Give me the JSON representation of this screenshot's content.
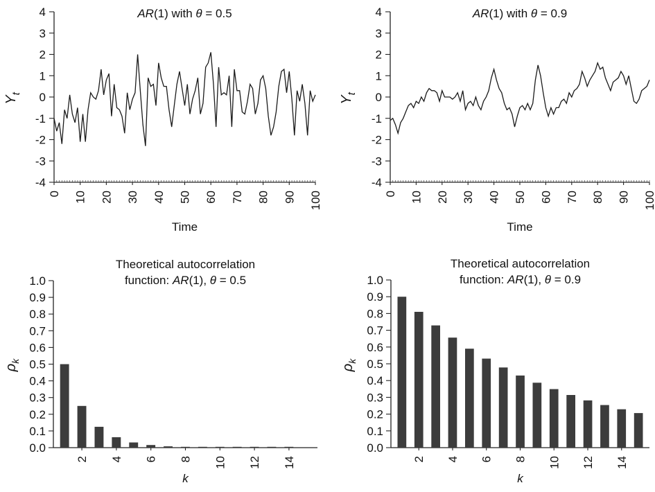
{
  "chart_data": [
    {
      "type": "line",
      "title_parts": [
        "AR",
        "(1) with ",
        "θ",
        " = 0.5"
      ],
      "xlabel": "Time",
      "ylabel": "Y",
      "ylabel_sub": "t",
      "xlim": [
        0,
        100
      ],
      "ylim": [
        -4,
        4
      ],
      "xticks": [
        "0",
        "10",
        "20",
        "30",
        "40",
        "50",
        "60",
        "70",
        "80",
        "90",
        "100"
      ],
      "yticks": [
        "4",
        "3",
        "2",
        "1",
        "0",
        "-1",
        "-2",
        "-3",
        "-4"
      ],
      "grid": false,
      "series": [
        {
          "x": [
            0,
            1,
            2,
            3,
            4,
            5,
            6,
            7,
            8,
            9,
            10,
            11,
            12,
            13,
            14,
            15,
            16,
            17,
            18,
            19,
            20,
            21,
            22,
            23,
            24,
            25,
            26,
            27,
            28,
            29,
            30,
            31,
            32,
            33,
            34,
            35,
            36,
            37,
            38,
            39,
            40,
            41,
            42,
            43,
            44,
            45,
            46,
            47,
            48,
            49,
            50,
            51,
            52,
            53,
            54,
            55,
            56,
            57,
            58,
            59,
            60,
            61,
            62,
            63,
            64,
            65,
            66,
            67,
            68,
            69,
            70,
            71,
            72,
            73,
            74,
            75,
            76,
            77,
            78,
            79,
            80,
            81,
            82,
            83,
            84,
            85,
            86,
            87,
            88,
            89,
            90,
            91,
            92,
            93,
            94,
            95,
            96,
            97,
            98,
            99,
            100
          ],
          "y": [
            -1.0,
            -1.6,
            -1.2,
            -2.2,
            -0.6,
            -1.0,
            0.1,
            -0.8,
            -1.2,
            -0.5,
            -2.1,
            -0.8,
            -2.1,
            -0.6,
            0.2,
            0.0,
            -0.1,
            0.3,
            1.3,
            0.1,
            0.8,
            1.1,
            -0.9,
            0.6,
            -0.5,
            -0.6,
            -0.9,
            -1.7,
            0.2,
            -0.6,
            -0.1,
            0.2,
            2.0,
            0.3,
            -1.3,
            -2.3,
            0.9,
            0.5,
            0.6,
            -0.4,
            1.6,
            0.9,
            0.5,
            0.5,
            -0.6,
            -1.4,
            -0.4,
            0.6,
            1.2,
            0.4,
            -0.4,
            0.6,
            -0.8,
            -0.1,
            0.3,
            0.9,
            -0.8,
            -0.3,
            1.4,
            1.6,
            2.1,
            0.6,
            -1.4,
            1.4,
            0.1,
            0.2,
            0.1,
            1.0,
            -1.4,
            1.3,
            0.3,
            0.3,
            -0.7,
            -0.8,
            -0.2,
            0.6,
            0.4,
            -0.8,
            -0.3,
            0.8,
            1.0,
            0.4,
            -0.9,
            -1.8,
            -1.4,
            -0.7,
            0.5,
            1.2,
            1.3,
            0.2,
            1.2,
            -0.1,
            -1.8,
            0.3,
            -0.2,
            0.6,
            -0.3,
            -1.8,
            0.3,
            -0.2,
            0.1
          ]
        }
      ]
    },
    {
      "type": "line",
      "title_parts": [
        "AR",
        "(1) with ",
        "θ",
        " = 0.9"
      ],
      "xlabel": "Time",
      "ylabel": "Y",
      "ylabel_sub": "t",
      "xlim": [
        0,
        100
      ],
      "ylim": [
        -4,
        4
      ],
      "xticks": [
        "0",
        "10",
        "20",
        "30",
        "40",
        "50",
        "60",
        "70",
        "80",
        "90",
        "100"
      ],
      "yticks": [
        "4",
        "3",
        "2",
        "1",
        "0",
        "-1",
        "-2",
        "-3",
        "-4"
      ],
      "grid": false,
      "series": [
        {
          "x": [
            0,
            1,
            2,
            3,
            4,
            5,
            6,
            7,
            8,
            9,
            10,
            11,
            12,
            13,
            14,
            15,
            16,
            17,
            18,
            19,
            20,
            21,
            22,
            23,
            24,
            25,
            26,
            27,
            28,
            29,
            30,
            31,
            32,
            33,
            34,
            35,
            36,
            37,
            38,
            39,
            40,
            41,
            42,
            43,
            44,
            45,
            46,
            47,
            48,
            49,
            50,
            51,
            52,
            53,
            54,
            55,
            56,
            57,
            58,
            59,
            60,
            61,
            62,
            63,
            64,
            65,
            66,
            67,
            68,
            69,
            70,
            71,
            72,
            73,
            74,
            75,
            76,
            77,
            78,
            79,
            80,
            81,
            82,
            83,
            84,
            85,
            86,
            87,
            88,
            89,
            90,
            91,
            92,
            93,
            94,
            95,
            96,
            97,
            98,
            99,
            100
          ],
          "y": [
            -1.1,
            -1.0,
            -1.3,
            -1.7,
            -1.2,
            -1.0,
            -0.7,
            -0.4,
            -0.3,
            -0.5,
            -0.2,
            -0.3,
            0.0,
            -0.2,
            0.2,
            0.4,
            0.3,
            0.3,
            0.2,
            -0.2,
            0.3,
            0.0,
            0.0,
            0.0,
            -0.1,
            0.0,
            0.2,
            -0.2,
            0.3,
            -0.6,
            -0.3,
            -0.2,
            -0.4,
            0.0,
            -0.4,
            -0.6,
            -0.2,
            0.0,
            0.3,
            0.9,
            1.3,
            0.8,
            0.4,
            0.2,
            -0.3,
            -0.6,
            -0.5,
            -0.8,
            -1.4,
            -0.9,
            -0.5,
            -0.4,
            -0.6,
            -0.3,
            -0.6,
            -0.3,
            0.8,
            1.5,
            1.0,
            0.2,
            -0.5,
            -0.9,
            -0.5,
            -0.8,
            -0.5,
            -0.5,
            -0.2,
            -0.1,
            -0.3,
            0.2,
            0.0,
            0.3,
            0.4,
            0.6,
            1.2,
            0.9,
            0.5,
            0.8,
            1.0,
            1.2,
            1.6,
            1.3,
            1.4,
            0.9,
            0.6,
            0.3,
            0.7,
            0.8,
            0.9,
            1.2,
            1.0,
            0.6,
            1.0,
            0.4,
            -0.2,
            -0.3,
            -0.1,
            0.3,
            0.4,
            0.5,
            0.8
          ]
        }
      ]
    },
    {
      "type": "bar",
      "title_line1": "Theoretical autocorrelation",
      "title_parts": [
        "function: ",
        "AR",
        "(1), ",
        "θ",
        " = 0.5"
      ],
      "xlabel": "k",
      "ylabel": "ρ",
      "ylabel_sub": "k",
      "ylim": [
        0,
        1
      ],
      "yticks": [
        "1.0",
        "0.9",
        "0.8",
        "0.7",
        "0.6",
        "0.5",
        "0.4",
        "0.3",
        "0.2",
        "0.1",
        "0.0"
      ],
      "xticks": [
        "2",
        "4",
        "6",
        "8",
        "10",
        "12",
        "14"
      ],
      "categories": [
        1,
        2,
        3,
        4,
        5,
        6,
        7,
        8,
        9,
        10,
        11,
        12,
        13,
        14,
        15
      ],
      "values": [
        0.5,
        0.25,
        0.125,
        0.0625,
        0.03125,
        0.015625,
        0.0078,
        0.0039,
        0.002,
        0.001,
        0.0005,
        0.0002,
        0.0001,
        0.0001,
        0.0
      ],
      "grid": false
    },
    {
      "type": "bar",
      "title_line1": "Theoretical autocorrelation",
      "title_parts": [
        "function: ",
        "AR",
        "(1), ",
        "θ",
        " = 0.9"
      ],
      "xlabel": "k",
      "ylabel": "ρ",
      "ylabel_sub": "k",
      "ylim": [
        0,
        1
      ],
      "yticks": [
        "1.0",
        "0.9",
        "0.8",
        "0.7",
        "0.6",
        "0.5",
        "0.4",
        "0.3",
        "0.2",
        "0.1",
        "0.0"
      ],
      "xticks": [
        "2",
        "4",
        "6",
        "8",
        "10",
        "12",
        "14"
      ],
      "categories": [
        1,
        2,
        3,
        4,
        5,
        6,
        7,
        8,
        9,
        10,
        11,
        12,
        13,
        14,
        15
      ],
      "values": [
        0.9,
        0.81,
        0.729,
        0.656,
        0.59,
        0.531,
        0.478,
        0.43,
        0.387,
        0.349,
        0.314,
        0.282,
        0.254,
        0.229,
        0.206
      ],
      "grid": false
    }
  ]
}
